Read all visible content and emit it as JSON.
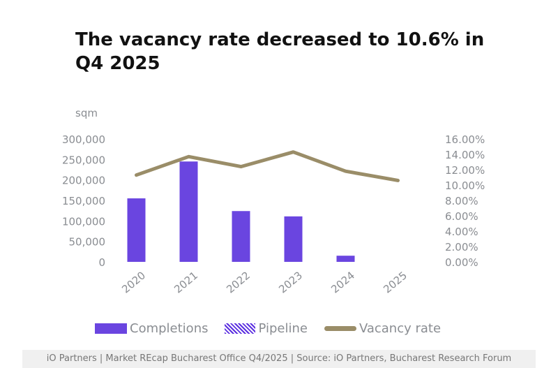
{
  "title": "The vacancy rate decreased to 10.6% in Q4 2025",
  "footer": "iO Partners | Market REcap Bucharest Office Q4/2025 | Source: iO Partners, Bucharest Research Forum",
  "chart_data": {
    "type": "bar",
    "categories": [
      "2020",
      "2021",
      "2022",
      "2023",
      "2024",
      "2025"
    ],
    "ylabel": "sqm",
    "ylim": [
      0,
      300000
    ],
    "y2lim": [
      0,
      16
    ],
    "yticks": [
      "0",
      "50,000",
      "100,000",
      "150,000",
      "200,000",
      "250,000",
      "300,000"
    ],
    "y2ticks": [
      "0.00%",
      "2.00%",
      "4.00%",
      "6.00%",
      "8.00%",
      "10.00%",
      "12.00%",
      "14.00%",
      "16.00%"
    ],
    "grid": false,
    "legend_position": "bottom",
    "series": [
      {
        "name": "Completions",
        "type": "bar",
        "axis": "left",
        "color": "#6a45e0",
        "values": [
          155000,
          245000,
          124000,
          111000,
          15000,
          null
        ]
      },
      {
        "name": "Pipeline",
        "type": "bar",
        "axis": "left",
        "color": "#5b2fe0",
        "pattern": "hatched",
        "values": [
          null,
          null,
          null,
          null,
          null,
          null
        ]
      },
      {
        "name": "Vacancy rate",
        "type": "line",
        "axis": "right",
        "color": "#9a8d68",
        "values": [
          11.3,
          13.7,
          12.4,
          14.3,
          11.8,
          10.6
        ]
      }
    ]
  }
}
